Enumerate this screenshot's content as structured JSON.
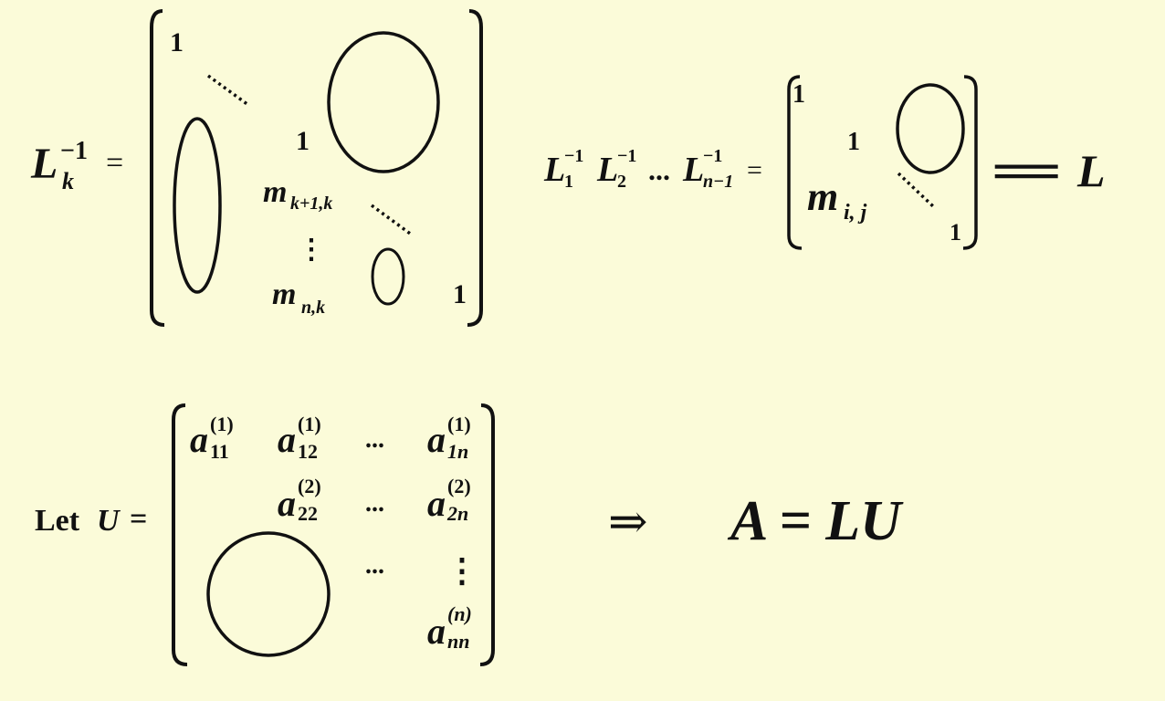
{
  "slide": {
    "background": "#fbfbd9",
    "equation1": {
      "lhs_base": "L",
      "lhs_sub": "k",
      "lhs_sup": "−1",
      "eq": "=",
      "one_top": "1",
      "one_mid": "1",
      "m_base_1": "m",
      "m_sub_1": "k+1,k",
      "vdots": "⋮",
      "m_base_2": "m",
      "m_sub_2": "n,k",
      "one_bottom": "1"
    },
    "equation2": {
      "L1_base": "L",
      "L1_sup": "−1",
      "L1_sub": "1",
      "L2_base": "L",
      "L2_sup": "−1",
      "L2_sub": "2",
      "dots": "...",
      "Ln_base": "L",
      "Ln_sup": "−1",
      "Ln_sub": "n−1",
      "eq": "=",
      "one_top": "1",
      "one_mid": "1",
      "m_base": "m",
      "m_sub": "i, j",
      "one_bottom": "1",
      "rhs_eq": "═",
      "rhs": "L"
    },
    "equation3": {
      "let": "Let",
      "U": "U",
      "eq": "=",
      "a": "a",
      "r1c1_sup": "(1)",
      "r1c1_sub": "11",
      "r1c2_sup": "(1)",
      "r1c2_sub": "12",
      "r1c3": "...",
      "r1c4_sup": "(1)",
      "r1c4_sub": "1n",
      "r2c2_sup": "(2)",
      "r2c2_sub": "22",
      "r2c3": "...",
      "r2c4_sup": "(2)",
      "r2c4_sub": "2n",
      "r3c3": "...",
      "r3c4": "⋮",
      "r4c4_sup": "(n)",
      "r4c4_sub": "nn",
      "implies": "⇒",
      "result": "A = LU"
    }
  }
}
